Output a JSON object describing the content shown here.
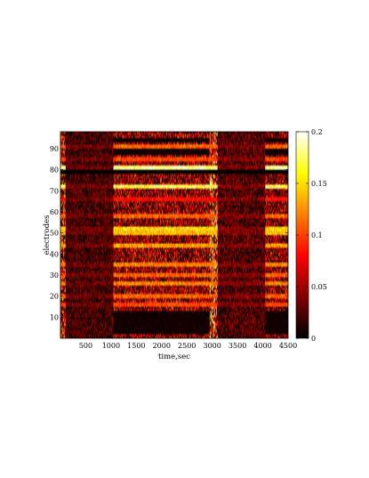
{
  "chart_data": {
    "type": "heatmap",
    "title": "",
    "xlabel": "time,sec",
    "ylabel": "electrodes",
    "xlim": [
      0,
      4500
    ],
    "ylim": [
      0,
      98
    ],
    "xticks": [
      500,
      1000,
      1500,
      2000,
      2500,
      3000,
      3500,
      4000,
      4500
    ],
    "yticks": [
      10,
      20,
      30,
      40,
      50,
      60,
      70,
      80,
      90
    ],
    "colorbar": {
      "range": [
        0,
        0.2
      ],
      "ticks": [
        0,
        0.05,
        0.1,
        0.15,
        0.2
      ],
      "tick_labels": [
        "0",
        "0.05",
        "0.1",
        "0.15",
        "0.2"
      ],
      "colormap": "hot",
      "colors": [
        "#000000",
        "#800000",
        "#ff0000",
        "#ff8000",
        "#ffff00",
        "#ffffff"
      ]
    },
    "time_segments": [
      {
        "t_start": 0,
        "t_end": 100,
        "level": 0.1
      },
      {
        "t_start": 100,
        "t_end": 1050,
        "level": 0.035
      },
      {
        "t_start": 1050,
        "t_end": 2950,
        "level": 0.075
      },
      {
        "t_start": 2950,
        "t_end": 3100,
        "level": 0.13
      },
      {
        "t_start": 3100,
        "t_end": 4050,
        "level": 0.04
      },
      {
        "t_start": 4050,
        "t_end": 4500,
        "level": 0.07
      }
    ],
    "electrode_bands": [
      {
        "electrode": 91,
        "value": 0.12
      },
      {
        "electrode": 85,
        "value": 0.11
      },
      {
        "electrode": 81,
        "value": 0.2
      },
      {
        "electrode": 79,
        "value": 0.0
      },
      {
        "electrode": 72,
        "value": 0.18
      },
      {
        "electrode": 66,
        "value": 0.09
      },
      {
        "electrode": 58,
        "value": 0.12
      },
      {
        "electrode": 52,
        "value": 0.16
      },
      {
        "electrode": 50,
        "value": 0.15
      },
      {
        "electrode": 44,
        "value": 0.14
      },
      {
        "electrode": 35,
        "value": 0.13
      },
      {
        "electrode": 30,
        "value": 0.12
      },
      {
        "electrode": 26,
        "value": 0.13
      },
      {
        "electrode": 20,
        "value": 0.12
      },
      {
        "electrode": 16,
        "value": 0.11
      }
    ],
    "quiet_electrode_ranges": [
      {
        "from": 2,
        "to": 13
      },
      {
        "from": 87,
        "to": 90
      },
      {
        "from": 93,
        "to": 95
      }
    ],
    "grid": false,
    "legend": "none"
  }
}
